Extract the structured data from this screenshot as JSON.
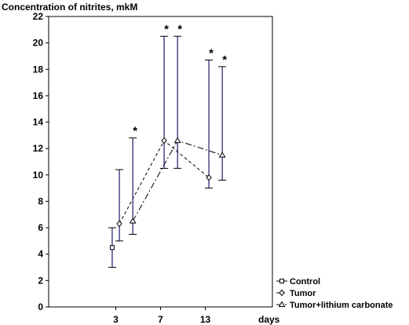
{
  "chart_data": {
    "type": "line",
    "title": "",
    "ylabel": "Concentration of nitrites, mkM",
    "xlabel": "days",
    "ylim": [
      0,
      22
    ],
    "yticks": [
      0,
      2,
      4,
      6,
      8,
      10,
      12,
      14,
      16,
      18,
      20,
      22
    ],
    "x_categories": [
      "3",
      "7",
      "13"
    ],
    "grid": false,
    "legend_position": "bottom-right",
    "significance_marker": "*",
    "series": [
      {
        "name": "Control",
        "marker": "square",
        "line_style": "solid",
        "points": [
          {
            "x": 1.42,
            "y": 4.5,
            "low": 3.0,
            "high": 6.0,
            "significant": false
          }
        ]
      },
      {
        "name": "Tumor",
        "marker": "diamond",
        "line_style": "dashed",
        "points": [
          {
            "x": 1.58,
            "y": 6.3,
            "low": 5.0,
            "high": 10.4,
            "significant": false
          },
          {
            "x": 2.58,
            "y": 12.6,
            "low": 10.5,
            "high": 20.5,
            "significant": true
          },
          {
            "x": 3.58,
            "y": 9.8,
            "low": 9.0,
            "high": 18.7,
            "significant": true
          }
        ]
      },
      {
        "name": "Tumor+lithium carbonate",
        "marker": "triangle",
        "line_style": "dash-dot",
        "points": [
          {
            "x": 1.88,
            "y": 6.5,
            "low": 5.5,
            "high": 12.8,
            "significant": true
          },
          {
            "x": 2.88,
            "y": 12.6,
            "low": 10.5,
            "high": 20.5,
            "significant": true
          },
          {
            "x": 3.88,
            "y": 11.5,
            "low": 9.6,
            "high": 18.2,
            "significant": true
          }
        ]
      }
    ],
    "colors": {
      "axis": "#000000",
      "error_bar": "#1c1c6e",
      "line": "#000000"
    }
  }
}
